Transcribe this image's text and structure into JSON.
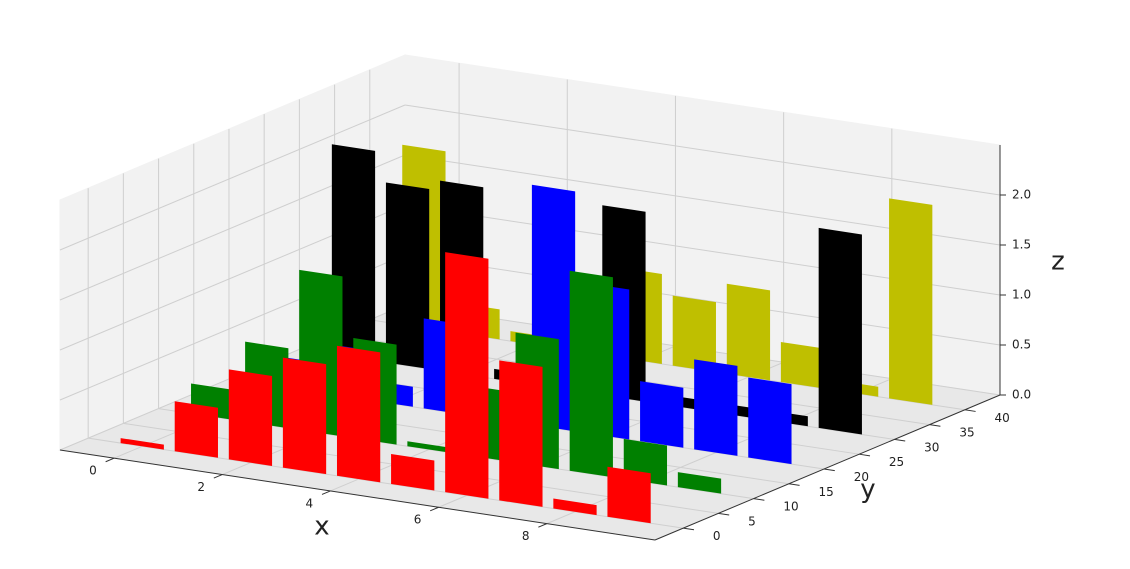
{
  "chart_data": {
    "type": "bar3d",
    "x": [
      0,
      1,
      2,
      3,
      4,
      5,
      6,
      7,
      8,
      9
    ],
    "series": [
      {
        "y": 0,
        "color": "#ff0000",
        "values": [
          0.05,
          0.5,
          0.9,
          1.1,
          1.3,
          0.3,
          2.4,
          1.4,
          0.1,
          0.5
        ]
      },
      {
        "y": 10,
        "color": "#008000",
        "values": [
          0.3,
          0.8,
          1.6,
          1.0,
          0.05,
          0.7,
          1.3,
          2.0,
          0.4,
          0.15
        ]
      },
      {
        "y": 20,
        "color": "#0000ff",
        "values": [
          0.3,
          0.5,
          0.2,
          0.9,
          0.2,
          2.4,
          1.5,
          0.6,
          0.9,
          0.8
        ]
      },
      {
        "y": 30,
        "color": "#000000",
        "values": [
          2.1,
          1.8,
          1.9,
          0.1,
          0.1,
          1.9,
          0.1,
          0.1,
          0.1,
          2.0
        ]
      },
      {
        "y": 40,
        "color": "#bfbf00",
        "values": [
          1.8,
          0.3,
          0.1,
          0.6,
          0.9,
          0.7,
          0.9,
          0.4,
          0.1,
          2.0
        ]
      }
    ],
    "xlabel": "x",
    "ylabel": "y",
    "zlabel": "z",
    "xlim": [
      -1,
      10
    ],
    "ylim": [
      -4,
      45
    ],
    "zlim": [
      0,
      2.5
    ],
    "xticks": [
      0,
      2,
      4,
      6,
      8
    ],
    "yticks": [
      0,
      5,
      10,
      15,
      20,
      25,
      30,
      35,
      40
    ],
    "zticks": [
      {
        "value": 0,
        "label": "0.0"
      },
      {
        "value": 0.5,
        "label": "0.5"
      },
      {
        "value": 1,
        "label": "1.0"
      },
      {
        "value": 1.5,
        "label": "1.5"
      },
      {
        "value": 2,
        "label": "2.0"
      }
    ],
    "grid": true
  }
}
